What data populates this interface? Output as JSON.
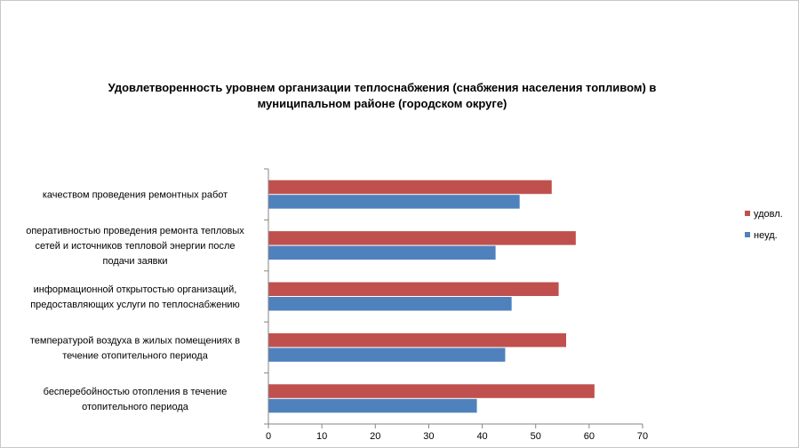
{
  "chart_data": {
    "type": "bar",
    "orientation": "horizontal",
    "title": "Удовлетворенность уровнем организации теплоснабжения (снабжения населения топливом) в муниципальном районе (городском округе)",
    "categories": [
      [
        "качеством  проведения  ремонтных  работ"
      ],
      [
        "оперативностью  проведения  ремонта тепловых",
        "сетей и источников тепловой энергии после",
        "подачи заявки"
      ],
      [
        "информационной  открытостью организаций,",
        "предоставляющих  услуги по теплоснабжению"
      ],
      [
        "температурой воздуха в жилых помещениях  в",
        "течение  отопительного периода"
      ],
      [
        "бесперебойностью  отопления в течение",
        "отопительного периода"
      ]
    ],
    "series": [
      {
        "name": "удовл.",
        "color": "#c0504d",
        "values": [
          53,
          57.5,
          54.3,
          55.7,
          61
        ]
      },
      {
        "name": "неуд.",
        "color": "#4f81bd",
        "values": [
          47,
          42.5,
          45.5,
          44.3,
          39
        ]
      }
    ],
    "xlim": [
      0,
      70
    ],
    "xticks": [
      0,
      10,
      20,
      30,
      40,
      50,
      60,
      70
    ],
    "grid": false,
    "legend_position": "right"
  }
}
